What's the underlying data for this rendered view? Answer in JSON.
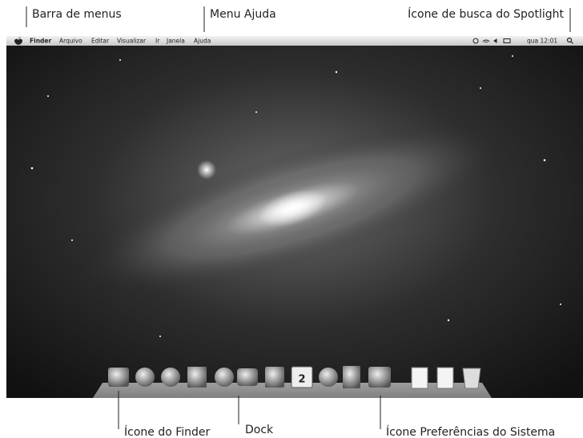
{
  "callouts": {
    "top": [
      "Barra de menus",
      "Menu Ajuda",
      "Ícone de busca do Spotlight"
    ],
    "bottom": [
      "Ícone do Finder",
      "Dock",
      "Ícone Preferências do Sistema"
    ]
  },
  "menubar": {
    "items": [
      "Finder",
      "Arquivo",
      "Editar",
      "Visualizar",
      "Ir",
      "Janela",
      "Ajuda"
    ],
    "clock": "qua 12:01"
  },
  "dock": {
    "calendar_day": "2"
  }
}
